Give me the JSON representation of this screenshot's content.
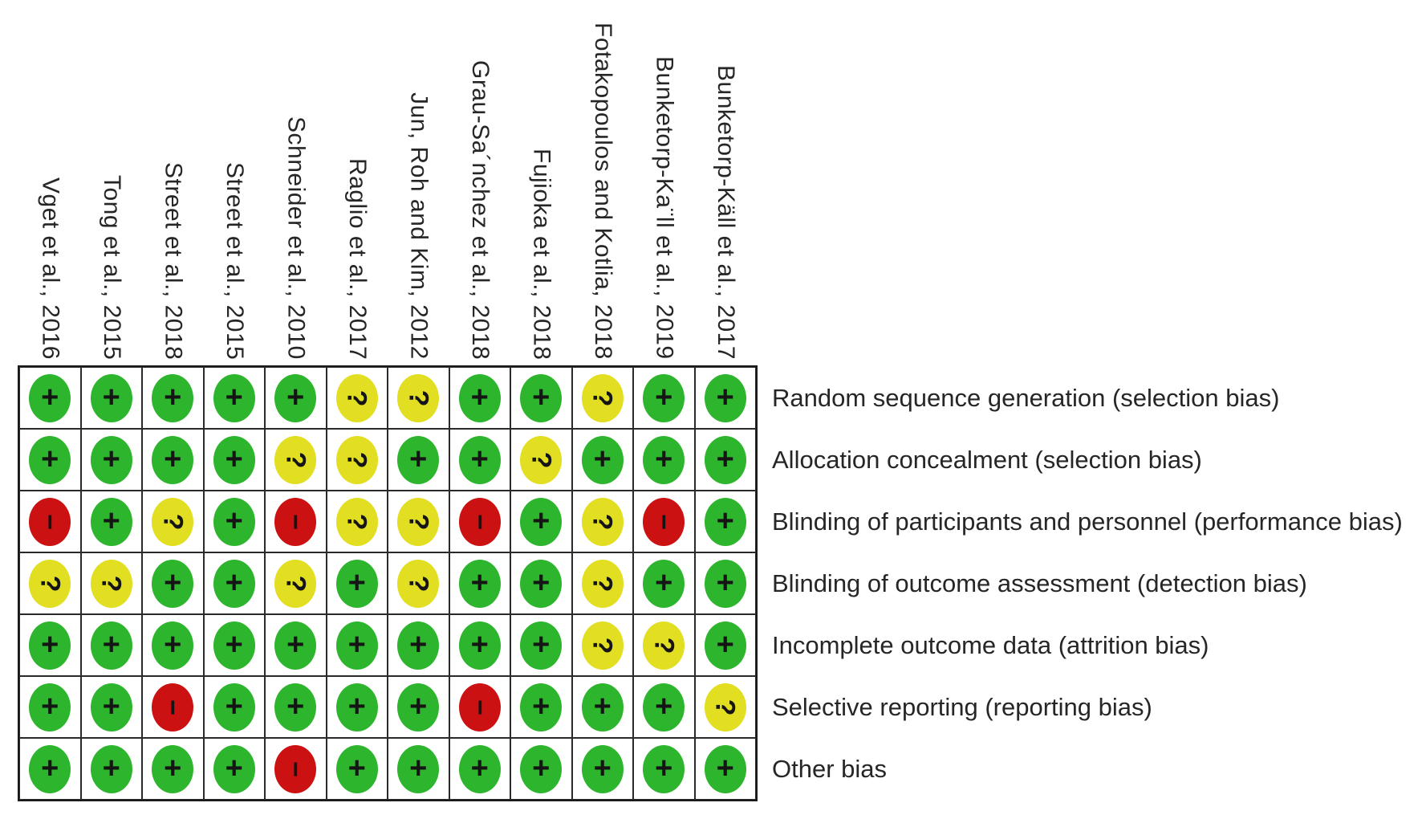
{
  "chart_data": {
    "type": "heatmap",
    "description_labels": {
      "columns_are": "studies",
      "rows_are": "risk-of-bias domains"
    },
    "columns": [
      "Vget et al., 2016",
      "Tong et al., 2015",
      "Street et al., 2018",
      "Street et al., 2015",
      "Schneider et al., 2010",
      "Raglio et al., 2017",
      "Jun, Roh and Kim, 2012",
      "Grau-Sa´nchez et al., 2018",
      "Fujioka et al., 2018",
      "Fotakopoulos and Kotlia, 2018",
      "Bunketorp-Ka¨ll et al., 2019",
      "Bunketorp-Käll et al., 2017"
    ],
    "rows": [
      "Random sequence generation (selection bias)",
      "Allocation concealment (selection bias)",
      "Blinding of participants and personnel (performance bias)",
      "Blinding of outcome assessment (detection bias)",
      "Incomplete outcome data (attrition bias)",
      "Selective reporting (reporting bias)",
      "Other bias"
    ],
    "values": [
      [
        "+",
        "+",
        "+",
        "+",
        "+",
        "?",
        "?",
        "+",
        "+",
        "?",
        "+",
        "+"
      ],
      [
        "+",
        "+",
        "+",
        "+",
        "?",
        "?",
        "+",
        "+",
        "?",
        "+",
        "+",
        "+"
      ],
      [
        "-",
        "+",
        "?",
        "+",
        "-",
        "?",
        "?",
        "-",
        "+",
        "?",
        "-",
        "+"
      ],
      [
        "?",
        "?",
        "+",
        "+",
        "?",
        "+",
        "?",
        "+",
        "+",
        "?",
        "+",
        "+"
      ],
      [
        "+",
        "+",
        "+",
        "+",
        "+",
        "+",
        "+",
        "+",
        "+",
        "?",
        "?",
        "+"
      ],
      [
        "+",
        "+",
        "-",
        "+",
        "+",
        "+",
        "+",
        "-",
        "+",
        "+",
        "+",
        "?"
      ],
      [
        "+",
        "+",
        "+",
        "+",
        "-",
        "+",
        "+",
        "+",
        "+",
        "+",
        "+",
        "+"
      ]
    ],
    "symbol_glyphs": {
      "+": "+",
      "?": "?",
      "-": "−"
    },
    "colors": {
      "+": "#2DB52D",
      "?": "#E2DE21",
      "-": "#CB1111"
    },
    "grid_line_color": "#1a1a1a",
    "text_color": "#262626",
    "legend_position": "none",
    "grid_on": true
  }
}
